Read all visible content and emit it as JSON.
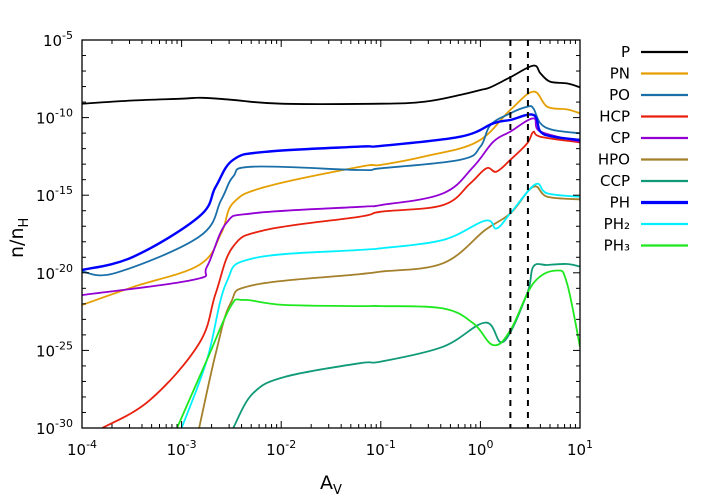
{
  "chart_data": {
    "type": "line",
    "title": "",
    "xlabel": {
      "main": "A",
      "sub": "V"
    },
    "ylabel": {
      "main": "n/n",
      "sub": "H"
    },
    "xscale": "log",
    "yscale": "log",
    "xlim": [
      0.0001,
      10
    ],
    "ylim": [
      1e-30,
      1e-05
    ],
    "grid": false,
    "legend_position": "outside-right",
    "xtick_labels": [
      {
        "value": 0.0001,
        "base": "10",
        "exp": "-4"
      },
      {
        "value": 0.001,
        "base": "10",
        "exp": "-3"
      },
      {
        "value": 0.01,
        "base": "10",
        "exp": "-2"
      },
      {
        "value": 0.1,
        "base": "10",
        "exp": "-1"
      },
      {
        "value": 1,
        "base": "10",
        "exp": "0"
      },
      {
        "value": 10,
        "base": "10",
        "exp": "1"
      }
    ],
    "ytick_labels": [
      {
        "value": 1e-05,
        "base": "10",
        "exp": "-5"
      },
      {
        "value": 1e-10,
        "base": "10",
        "exp": "-10"
      },
      {
        "value": 1e-15,
        "base": "10",
        "exp": "-15"
      },
      {
        "value": 1e-20,
        "base": "10",
        "exp": "-20"
      },
      {
        "value": 1e-25,
        "base": "10",
        "exp": "-25"
      },
      {
        "value": 1e-30,
        "base": "10",
        "exp": "-30"
      }
    ],
    "vertical_lines": [
      {
        "x": 2,
        "style": "dashed",
        "color": "#000000"
      },
      {
        "x": 3,
        "style": "dashed",
        "color": "#000000"
      }
    ],
    "series": [
      {
        "name": "P",
        "color": "#000000",
        "x": [
          0.0001,
          0.00032,
          0.001,
          0.0016,
          0.0032,
          0.01,
          0.1,
          0.28,
          0.63,
          1,
          1.26,
          2,
          3.4,
          4,
          5,
          7.4,
          10
        ],
        "y": [
          7.9e-10,
          1.26e-09,
          1.66e-09,
          1.9e-09,
          1.4e-09,
          7.9e-10,
          7.9e-10,
          1.07e-09,
          2.9e-09,
          6e-09,
          8.9e-09,
          4e-08,
          2.24e-07,
          7.1e-08,
          2.1e-08,
          1.6e-08,
          8.9e-09
        ]
      },
      {
        "name": "PN",
        "color": "#e69f00",
        "x": [
          0.0001,
          0.00033,
          0.0015,
          0.0025,
          0.0033,
          0.007,
          0.062,
          0.1,
          0.28,
          0.93,
          2,
          3.4,
          4.7,
          7.4,
          10
        ],
        "y": [
          8.5e-23,
          1.26e-21,
          3.2e-20,
          3.5e-18,
          3.2e-16,
          3.5e-15,
          6.9e-14,
          8.9e-14,
          3.2e-13,
          2.8e-12,
          3.2e-10,
          4.7e-09,
          5e-10,
          3.4e-10,
          1.9e-10
        ]
      },
      {
        "name": "PO",
        "color": "#1a6fa8",
        "x": [
          0.0001,
          0.00022,
          0.0015,
          0.0025,
          0.0033,
          0.0052,
          0.062,
          0.1,
          0.63,
          1,
          1.26,
          2,
          2.95,
          3.4,
          4,
          5.4,
          10
        ],
        "y": [
          1.2e-20,
          1e-20,
          2.1e-18,
          5e-16,
          1.6e-14,
          6.9e-14,
          4.2e-14,
          5.4e-14,
          1.9e-13,
          1.35e-12,
          3.3e-11,
          1.9e-10,
          5e-10,
          4e-10,
          4.3e-11,
          1.6e-11,
          9.8e-12
        ]
      },
      {
        "name": "HCP",
        "color": "#e8210f",
        "x": [
          0.00016,
          0.00048,
          0.0015,
          0.0022,
          0.0033,
          0.007,
          0.062,
          0.1,
          0.42,
          0.79,
          1.15,
          1.45,
          2,
          2.95,
          3.4,
          4,
          10
        ],
        "y": [
          1e-30,
          6.3e-29,
          2.8e-25,
          4.8e-22,
          5e-19,
          5.8e-18,
          4.2e-17,
          8.7e-17,
          2.3e-16,
          5.8e-15,
          5.4e-14,
          3.3e-14,
          1.9e-13,
          2.2e-12,
          1.2e-11,
          5.9e-12,
          2.5e-12
        ]
      },
      {
        "name": "CP",
        "color": "#9400d3",
        "x": [
          0.0001,
          0.0013,
          0.0018,
          0.0028,
          0.0052,
          0.062,
          0.1,
          0.42,
          0.85,
          1.35,
          2,
          3.4,
          4,
          10
        ],
        "y": [
          3.7e-22,
          3.5e-21,
          2.5e-20,
          1.55e-17,
          6.8e-17,
          1.8e-16,
          2.3e-16,
          1.3e-15,
          6.9e-14,
          2.8e-12,
          1.26e-11,
          8.9e-11,
          1.26e-11,
          2.8e-12
        ]
      },
      {
        "name": "HPO",
        "color": "#a4802a",
        "x": [
          0.0015,
          0.0022,
          0.0031,
          0.0052,
          0.062,
          0.1,
          0.42,
          1.12,
          2,
          3.4,
          4.7,
          10
        ],
        "y": [
          1e-30,
          6.3e-26,
          1.07e-22,
          1.6e-21,
          8.3e-21,
          1.2e-20,
          4.1e-20,
          5.8e-18,
          6.8e-17,
          3.5e-15,
          7.9e-16,
          5.4e-16
        ]
      },
      {
        "name": "CCP",
        "color": "#109a78",
        "x": [
          0.0033,
          0.0052,
          0.011,
          0.062,
          0.1,
          0.42,
          1.12,
          1.7,
          2.95,
          3.4,
          4.7,
          7.4,
          10
        ],
        "y": [
          1e-30,
          1.7e-28,
          2e-27,
          1.5e-26,
          1.9e-26,
          1.7e-25,
          6.2e-24,
          3.6e-25,
          4.8e-22,
          2.5e-20,
          3.2e-20,
          3.7e-20,
          2.5e-20
        ]
      },
      {
        "name": "PH",
        "color": "#0000ff",
        "x": [
          0.0001,
          0.00033,
          0.0015,
          0.0022,
          0.0033,
          0.007,
          0.062,
          0.1,
          0.63,
          1.35,
          2,
          3.4,
          4,
          5.4,
          10
        ],
        "y": [
          1.5e-20,
          1.1e-19,
          4.2e-17,
          3.5e-15,
          1.9e-13,
          6.3e-13,
          1.35e-12,
          1.5e-12,
          5.9e-12,
          4.3e-11,
          7.1e-11,
          1.5e-10,
          1.26e-11,
          5.9e-12,
          3.6e-12
        ]
      },
      {
        "name": "PH₂",
        "color": "#00f0ff",
        "x": [
          0.001,
          0.0018,
          0.0028,
          0.0052,
          0.062,
          0.1,
          0.42,
          1.12,
          1.45,
          2,
          3.55,
          4.7,
          10
        ],
        "y": [
          1e-30,
          2.5e-26,
          2.1e-21,
          8.5e-20,
          3e-19,
          3.8e-19,
          1.3e-18,
          2.3e-17,
          7.2e-18,
          6.8e-17,
          5e-15,
          1.3e-15,
          7.9e-16
        ]
      },
      {
        "name": "PH₃",
        "color": "#1ee81e",
        "x": [
          0.0009,
          0.0018,
          0.0031,
          0.0042,
          0.0105,
          0.062,
          0.1,
          0.42,
          0.85,
          1.35,
          2,
          3.4,
          5.9,
          7.4,
          10
        ],
        "y": [
          1e-30,
          2.5e-26,
          6.6e-23,
          1.8e-22,
          8.5e-23,
          7.2e-23,
          7.2e-23,
          5.1e-23,
          5.5e-24,
          2.2e-25,
          2e-24,
          2.1e-21,
          1.4e-20,
          2.1e-21,
          1.7e-25
        ]
      }
    ]
  }
}
